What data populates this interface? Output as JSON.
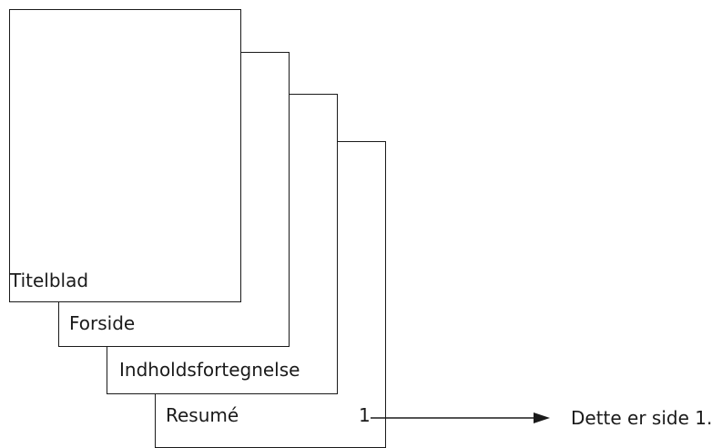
{
  "pages": [
    {
      "label": "Titelblad"
    },
    {
      "label": "Forside"
    },
    {
      "label": "Indholdsfortegnelse"
    },
    {
      "label": "Resumé"
    }
  ],
  "page_number": "1",
  "annotation": "Dette er side 1.",
  "colors": {
    "line": "#1a1a1a",
    "background": "#ffffff"
  }
}
